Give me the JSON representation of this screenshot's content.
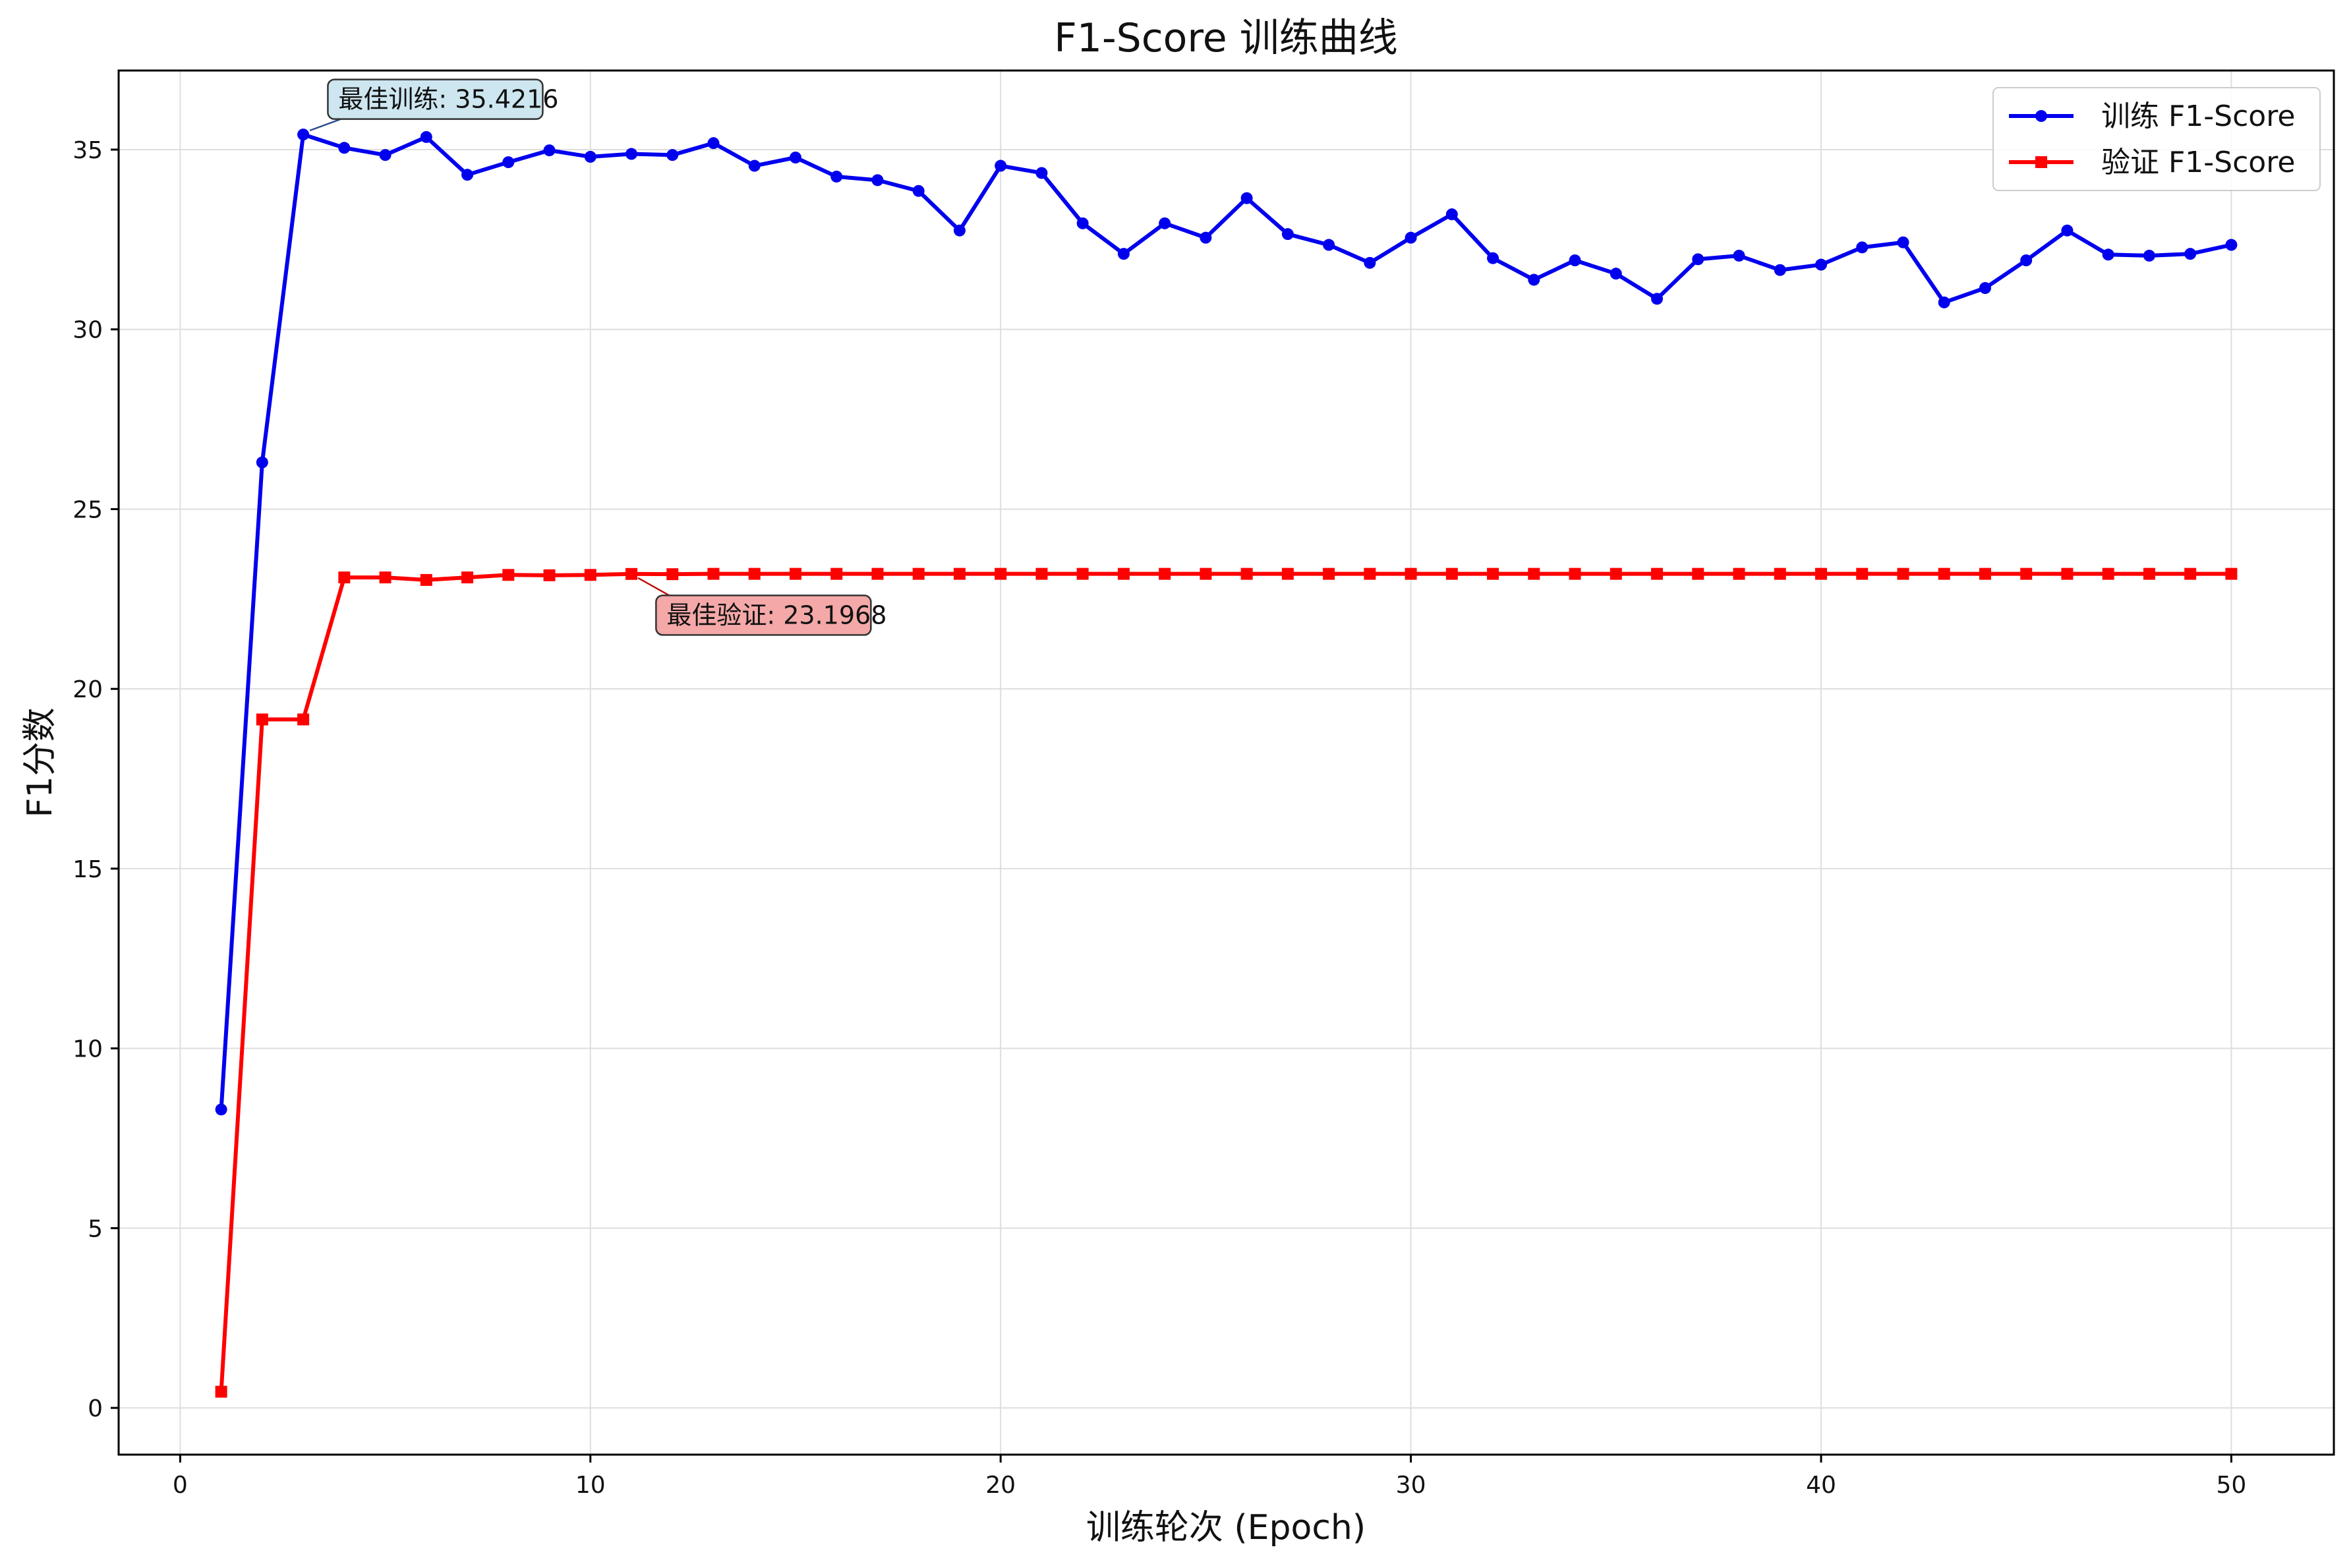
{
  "chart_data": {
    "type": "line",
    "title": "F1-Score 训练曲线",
    "xlabel": "训练轮次 (Epoch)",
    "ylabel": "F1分数",
    "xlim": [
      -1.5,
      52.5
    ],
    "ylim": [
      -1.3,
      37.2
    ],
    "xticks": [
      0,
      10,
      20,
      30,
      40,
      50
    ],
    "yticks": [
      0,
      5,
      10,
      15,
      20,
      25,
      30,
      35
    ],
    "grid": true,
    "legend_position": "top-right",
    "x": [
      1,
      2,
      3,
      4,
      5,
      6,
      7,
      8,
      9,
      10,
      11,
      12,
      13,
      14,
      15,
      16,
      17,
      18,
      19,
      20,
      21,
      22,
      23,
      24,
      25,
      26,
      27,
      28,
      29,
      30,
      31,
      32,
      33,
      34,
      35,
      36,
      37,
      38,
      39,
      40,
      41,
      42,
      43,
      44,
      45,
      46,
      47,
      48,
      49,
      50
    ],
    "series": [
      {
        "name": "训练 F1-Score",
        "color": "#0000ee",
        "marker": "circle",
        "values": [
          8.3,
          26.3,
          35.42,
          35.05,
          34.85,
          35.35,
          34.3,
          34.65,
          34.98,
          34.8,
          34.88,
          34.85,
          35.18,
          34.55,
          34.78,
          34.25,
          34.15,
          33.85,
          32.75,
          34.55,
          34.35,
          32.95,
          32.1,
          32.95,
          32.55,
          33.65,
          32.65,
          32.35,
          31.85,
          32.55,
          33.2,
          31.98,
          31.38,
          31.92,
          31.55,
          30.85,
          31.95,
          32.05,
          31.65,
          31.8,
          32.28,
          32.42,
          30.75,
          31.15,
          31.92,
          32.75,
          32.08,
          32.05,
          32.1,
          32.35
        ]
      },
      {
        "name": "验证 F1-Score",
        "color": "#ff0000",
        "marker": "square",
        "values": [
          0.45,
          19.15,
          19.15,
          23.1,
          23.1,
          23.03,
          23.1,
          23.17,
          23.16,
          23.17,
          23.1968,
          23.19,
          23.2,
          23.2,
          23.2,
          23.2,
          23.2,
          23.2,
          23.2,
          23.2,
          23.2,
          23.2,
          23.2,
          23.2,
          23.2,
          23.2,
          23.2,
          23.2,
          23.2,
          23.2,
          23.2,
          23.2,
          23.2,
          23.2,
          23.2,
          23.2,
          23.2,
          23.2,
          23.2,
          23.2,
          23.2,
          23.2,
          23.2,
          23.2,
          23.2,
          23.2,
          23.2,
          23.2,
          23.2,
          23.2
        ]
      }
    ],
    "annotations": [
      {
        "text": "最佳训练: 35.4216",
        "x": 3,
        "y": 35.4216,
        "text_x": 3.6,
        "text_y": 36.4,
        "bg": "#cde6f0"
      },
      {
        "text": "最佳验证: 23.1968",
        "x": 11,
        "y": 23.1968,
        "text_x": 11.6,
        "text_y": 22.05,
        "bg": "#f4a8a8"
      }
    ]
  }
}
